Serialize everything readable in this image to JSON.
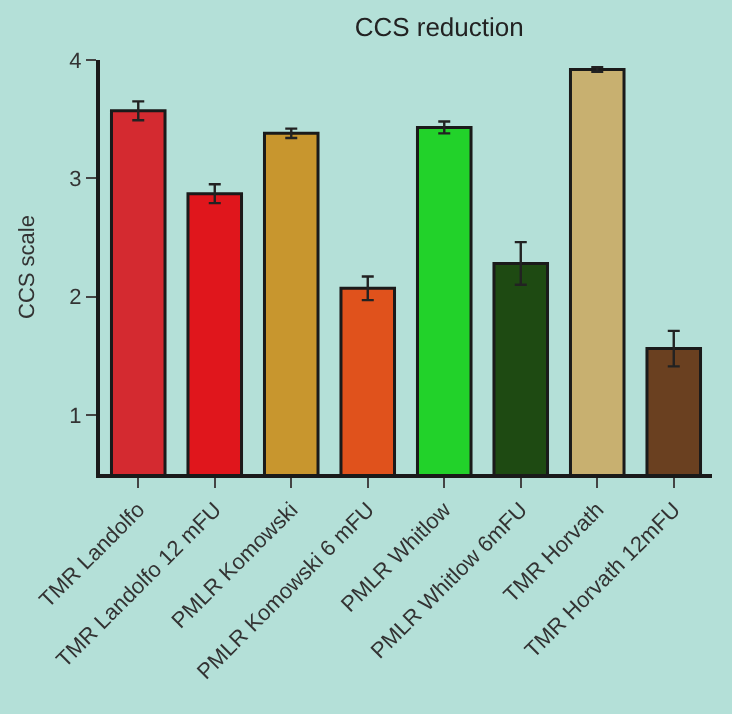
{
  "chart_data": {
    "type": "bar",
    "title": "CCS reduction",
    "ylabel": "CCS scale",
    "categories": [
      "TMR Landolfo",
      "TMR Landolfo 12 mFU",
      "PMLR Komowski",
      "PMLR Komowski 6 mFU",
      "PMLR Whitlow",
      "PMLR Whitlow 6mFU",
      "TMR Horvath",
      "TMR Horvath 12mFU"
    ],
    "values": [
      3.57,
      2.87,
      3.38,
      2.07,
      3.43,
      2.28,
      3.92,
      1.56
    ],
    "errors": [
      0.08,
      0.08,
      0.04,
      0.1,
      0.05,
      0.18,
      0.02,
      0.15
    ],
    "colors": [
      "#d42a30",
      "#e0161c",
      "#c8962e",
      "#e0521c",
      "#22d22a",
      "#1e4a12",
      "#c8b070",
      "#6a4020"
    ],
    "ylim": [
      0.5,
      4
    ],
    "yticks": [
      1,
      2,
      3,
      4
    ],
    "grid": false
  }
}
